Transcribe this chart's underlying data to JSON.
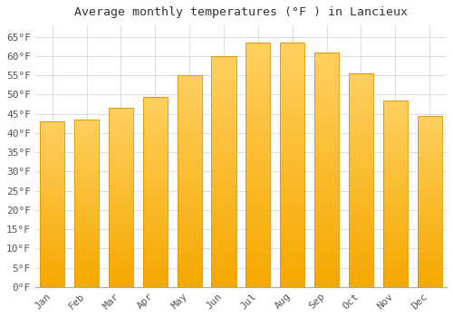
{
  "title": "Average monthly temperatures (°F ) in Lancieux",
  "months": [
    "Jan",
    "Feb",
    "Mar",
    "Apr",
    "May",
    "Jun",
    "Jul",
    "Aug",
    "Sep",
    "Oct",
    "Nov",
    "Dec"
  ],
  "values": [
    43,
    43.5,
    46.5,
    49.5,
    55,
    60,
    63.5,
    63.5,
    61,
    55.5,
    48.5,
    44.5
  ],
  "bar_color_top": "#FFD060",
  "bar_color_bottom": "#F5A800",
  "bar_edge_color": "#E09000",
  "background_color": "#FFFFFF",
  "grid_color": "#DDDDDD",
  "title_fontsize": 9.5,
  "tick_fontsize": 8,
  "ylim": [
    0,
    68
  ],
  "yticks": [
    0,
    5,
    10,
    15,
    20,
    25,
    30,
    35,
    40,
    45,
    50,
    55,
    60,
    65
  ]
}
